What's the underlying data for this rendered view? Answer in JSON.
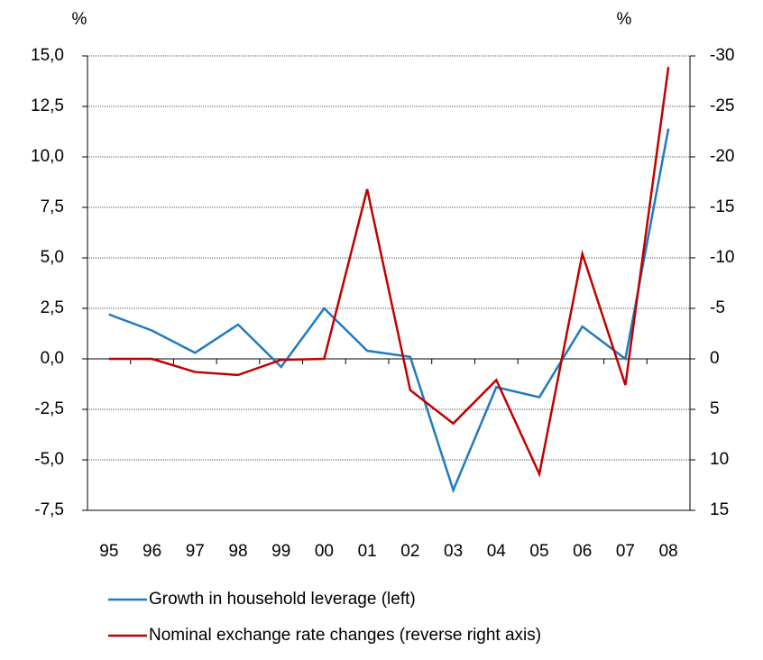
{
  "chart_data": {
    "type": "line",
    "ylabel": "%",
    "y2label": "%",
    "categories": [
      "95",
      "96",
      "97",
      "98",
      "99",
      "00",
      "01",
      "02",
      "03",
      "04",
      "05",
      "06",
      "07",
      "08"
    ],
    "series": [
      {
        "name": "Growth in household leverage (left)",
        "color": "#1f7bbf",
        "axis": "y",
        "values": [
          2.2,
          1.4,
          0.3,
          1.7,
          -0.4,
          2.5,
          0.4,
          0.1,
          -6.5,
          -1.4,
          -1.9,
          1.6,
          0.0,
          11.4
        ]
      },
      {
        "name": "Nominal exchange rate changes (reverse right axis)",
        "color": "#c00000",
        "axis": "y2",
        "values": [
          0,
          0,
          1.3,
          1.6,
          0.1,
          0,
          -16.8,
          3.1,
          6.4,
          2.1,
          11.4,
          -10.4,
          2.6,
          -28.9
        ]
      }
    ],
    "ylim": [
      -7.5,
      15
    ],
    "yticks": [
      {
        "value": -7.5,
        "label": "-7,5"
      },
      {
        "value": -5,
        "label": "-5,0"
      },
      {
        "value": -2.5,
        "label": "-2,5"
      },
      {
        "value": 0,
        "label": "0,0"
      },
      {
        "value": 2.5,
        "label": "2,5"
      },
      {
        "value": 5,
        "label": "5,0"
      },
      {
        "value": 7.5,
        "label": "7,5"
      },
      {
        "value": 10,
        "label": "10,0"
      },
      {
        "value": 12.5,
        "label": "12,5"
      },
      {
        "value": 15,
        "label": "15,0"
      }
    ],
    "y2lim": [
      15,
      -30
    ],
    "y2ticks": [
      15,
      10,
      5,
      0,
      -5,
      -10,
      -15,
      -20,
      -25,
      -30
    ],
    "grid": true
  }
}
